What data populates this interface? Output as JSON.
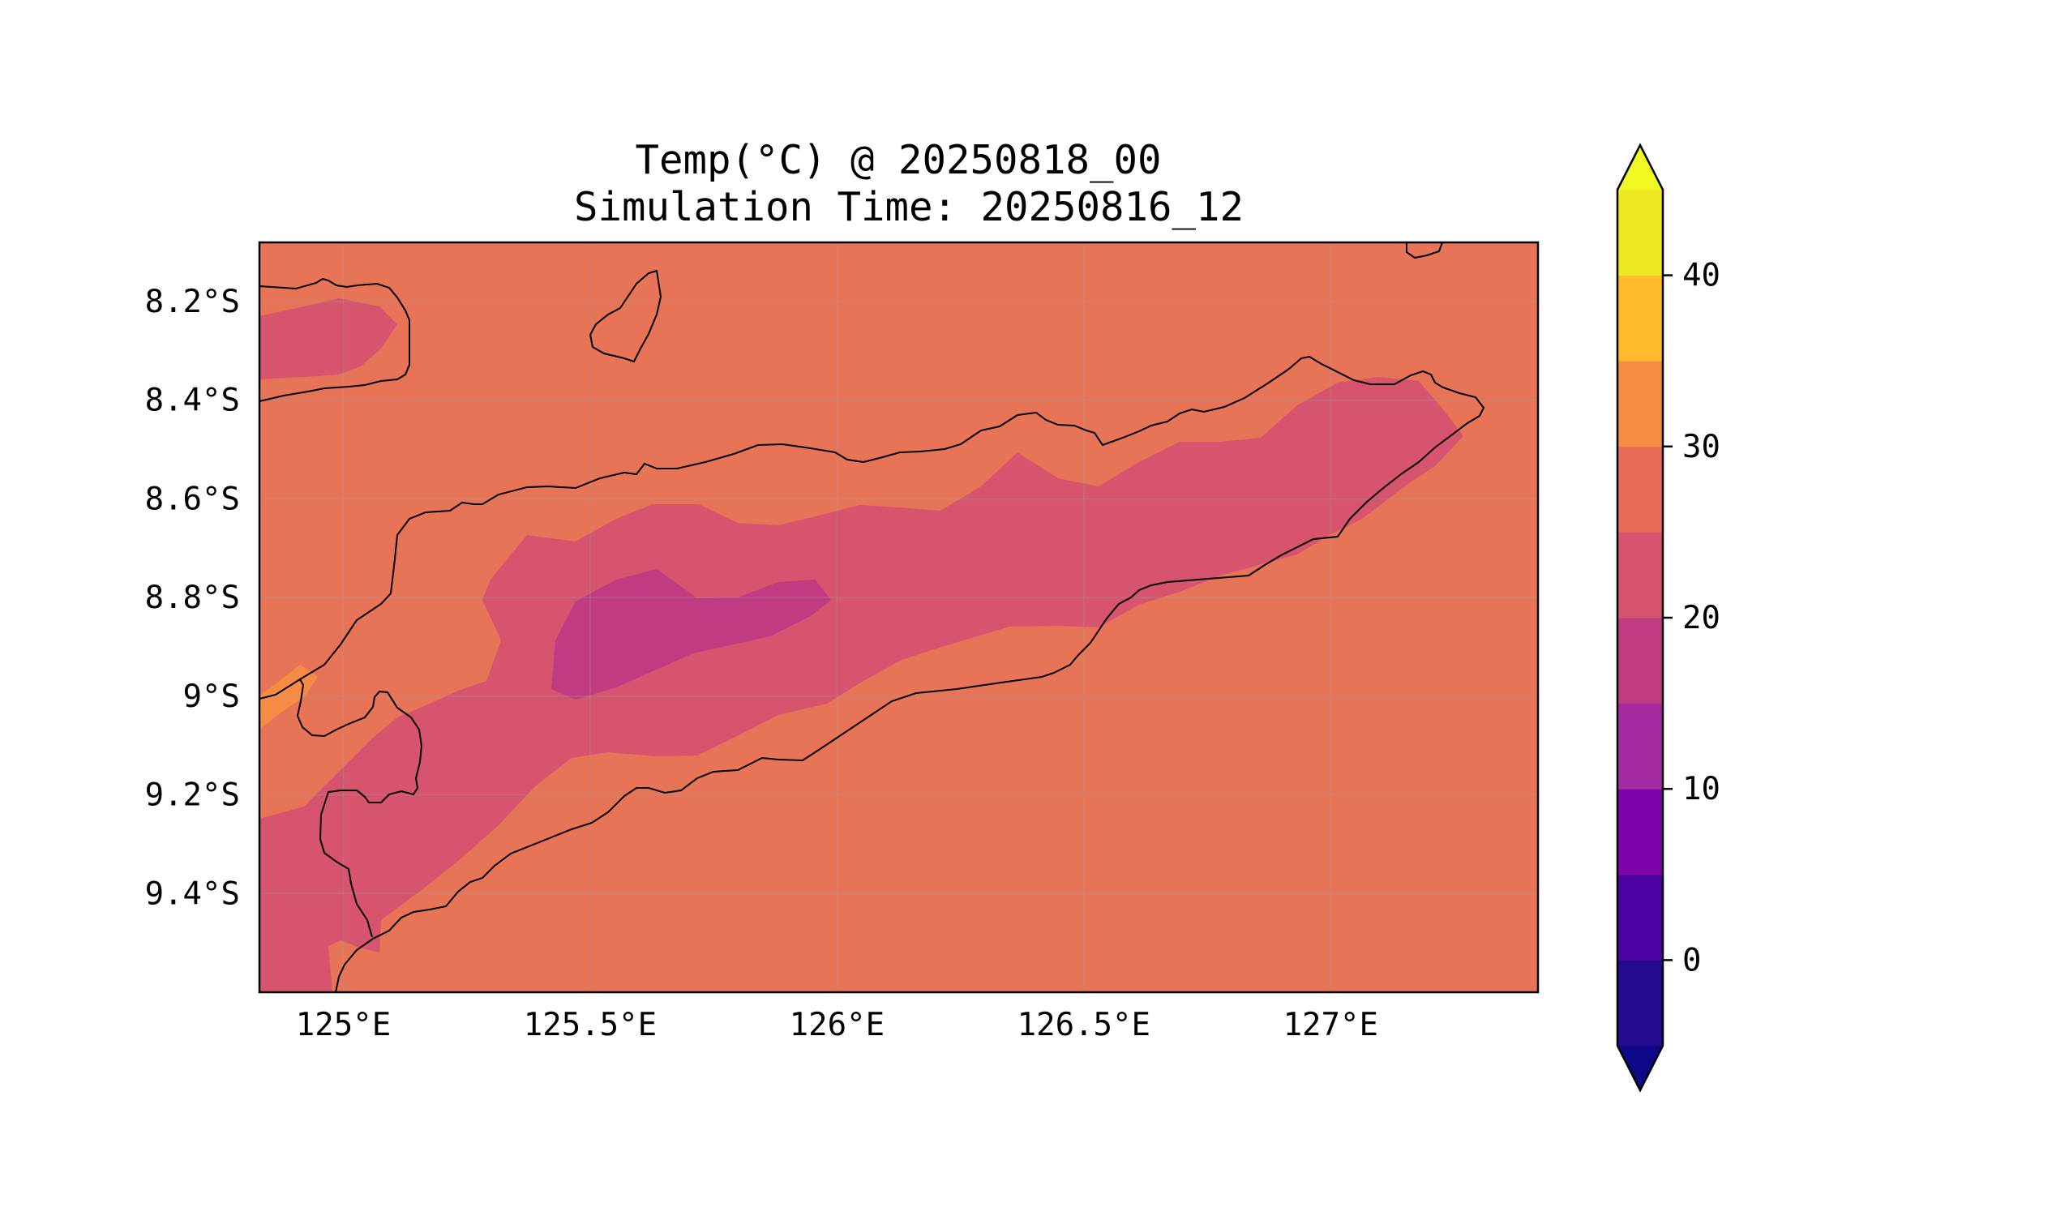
{
  "title": {
    "line1": "Temp(°C) @ 20250818_00",
    "line2": "Simulation Time: 20250816_12"
  },
  "map": {
    "lon_range": [
      124.83,
      127.42
    ],
    "lat_range": [
      -9.6,
      -8.08
    ],
    "x_ticks": [
      {
        "value": 125.0,
        "label": "125°E"
      },
      {
        "value": 125.5,
        "label": "125.5°E"
      },
      {
        "value": 126.0,
        "label": "126°E"
      },
      {
        "value": 126.5,
        "label": "126.5°E"
      },
      {
        "value": 127.0,
        "label": "127°E"
      }
    ],
    "y_ticks": [
      {
        "value": -8.2,
        "label": "8.2°S"
      },
      {
        "value": -8.4,
        "label": "8.4°S"
      },
      {
        "value": -8.6,
        "label": "8.6°S"
      },
      {
        "value": -8.8,
        "label": "8.8°S"
      },
      {
        "value": -9.0,
        "label": "9°S"
      },
      {
        "value": -9.2,
        "label": "9.2°S"
      },
      {
        "value": -9.4,
        "label": "9.4°S"
      }
    ],
    "grid": true,
    "coastlines": true
  },
  "colorbar": {
    "levels": [
      -5,
      0,
      5,
      10,
      15,
      20,
      25,
      30,
      35,
      40,
      45
    ],
    "colors": [
      "#240a8c",
      "#4c02a1",
      "#7e03a8",
      "#a32aa0",
      "#c13b82",
      "#d6546e",
      "#e86b59",
      "#f68c44",
      "#febb2b",
      "#f0e723"
    ],
    "extend_low_color": "#0d0887",
    "extend_high_color": "#f0f921",
    "ticks": [
      {
        "value": 0,
        "label": "0"
      },
      {
        "value": 10,
        "label": "10"
      },
      {
        "value": 20,
        "label": "20"
      },
      {
        "value": 30,
        "label": "30"
      },
      {
        "value": 40,
        "label": "40"
      }
    ],
    "orientation": "vertical",
    "placement": "right"
  },
  "chart_data": {
    "type": "heatmap",
    "variable": "Temp(°C)",
    "colormap": "plasma",
    "background_level_range": [
      25,
      30
    ],
    "regions": [
      {
        "level_range": [
          20,
          25
        ],
        "area": "central mountain ridge of Timor and NW corner"
      },
      {
        "level_range": [
          15,
          20
        ],
        "area": "highest terrain near 125.6°E, 8.9°S"
      },
      {
        "level_range": [
          30,
          35
        ],
        "area": "small patch at west edge near 9°S"
      }
    ]
  }
}
